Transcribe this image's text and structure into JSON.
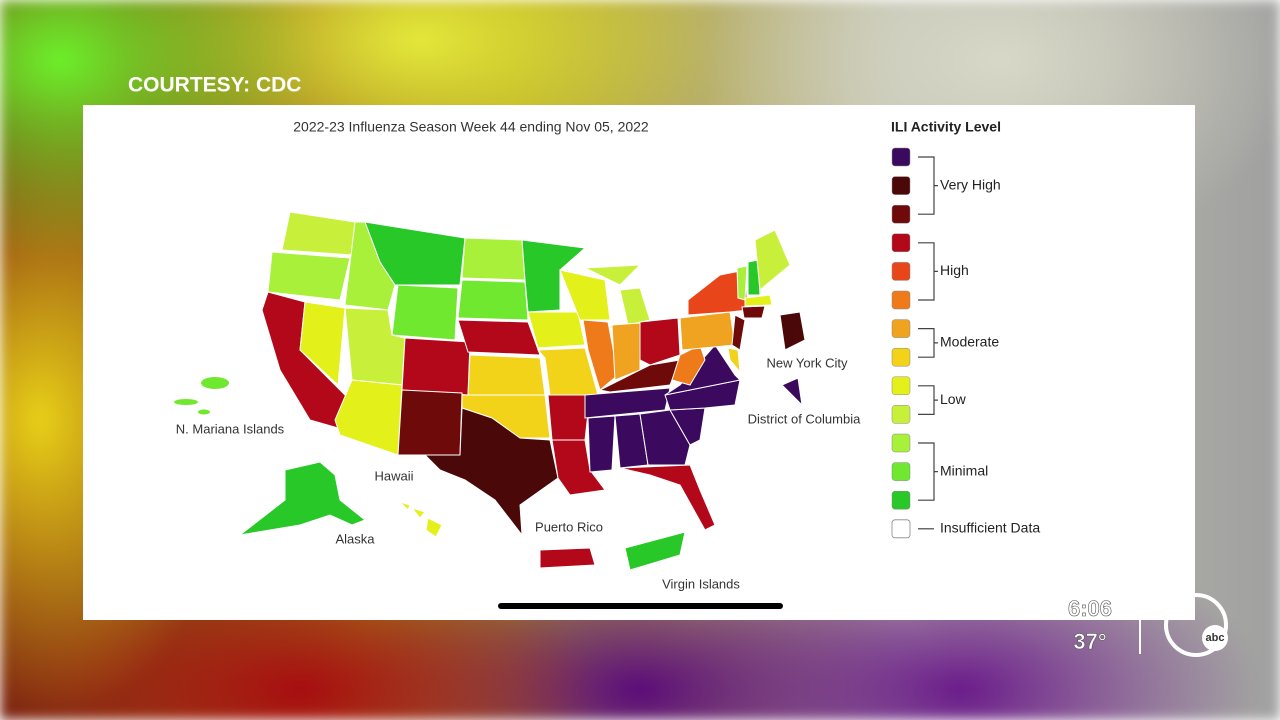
{
  "courtesy": "COURTESY: CDC",
  "map": {
    "title": "2022-23 Influenza Season Week 44 ending Nov 05, 2022",
    "labels": [
      "N. Mariana Islands",
      "Hawaii",
      "Alaska",
      "Puerto Rico",
      "Virgin Islands",
      "New York City",
      "District of Columbia"
    ]
  },
  "legend": {
    "title": "ILI Activity Level",
    "groups": [
      {
        "label": "Very High",
        "colors": [
          "#3b0a5e",
          "#4a0808",
          "#6e0a0a"
        ]
      },
      {
        "label": "High",
        "colors": [
          "#b3081a",
          "#e8461a",
          "#ef7a1a"
        ]
      },
      {
        "label": "Moderate",
        "colors": [
          "#f0a320",
          "#f2d31a"
        ]
      },
      {
        "label": "Low",
        "colors": [
          "#e4f01a",
          "#c8f03a"
        ]
      },
      {
        "label": "Minimal",
        "colors": [
          "#a8f03a",
          "#70e830",
          "#28c828"
        ]
      }
    ],
    "insufficient": {
      "label": "Insufficient Data",
      "color": "#ffffff"
    }
  },
  "ticker": {
    "time": "6:06",
    "temp": "37°",
    "logo": "abc"
  }
}
